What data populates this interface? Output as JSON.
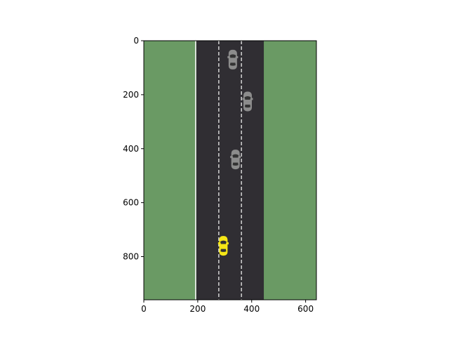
{
  "game": {
    "x_range": [
      0,
      640
    ],
    "y_range": [
      0,
      960
    ],
    "y_inverted": true,
    "x_ticks": [
      0,
      200,
      400,
      600
    ],
    "y_ticks": [
      0,
      200,
      400,
      600,
      800
    ],
    "x_tick_labels": [
      "0",
      "200",
      "400",
      "600"
    ],
    "y_tick_labels": [
      "0",
      "200",
      "400",
      "600",
      "800"
    ],
    "colors": {
      "grass": "#6a9a64",
      "road": "#302e33",
      "edge_line": "#f0f0f0",
      "lane_dash": "#e0e0e0",
      "npc_car": "#8c8c8c",
      "player_car": "#f5e616",
      "car_glass": "#333333"
    },
    "road": {
      "left_x": 195,
      "right_x": 445
    },
    "edge_line_x": 192,
    "lane_divider_x": [
      278,
      362
    ],
    "cars": [
      {
        "name": "npc-car-1",
        "x": 330,
        "y": 70,
        "kind": "npc"
      },
      {
        "name": "npc-car-2",
        "x": 385,
        "y": 225,
        "kind": "npc"
      },
      {
        "name": "npc-car-3",
        "x": 340,
        "y": 440,
        "kind": "npc"
      },
      {
        "name": "player-car",
        "x": 295,
        "y": 760,
        "kind": "player"
      }
    ]
  }
}
